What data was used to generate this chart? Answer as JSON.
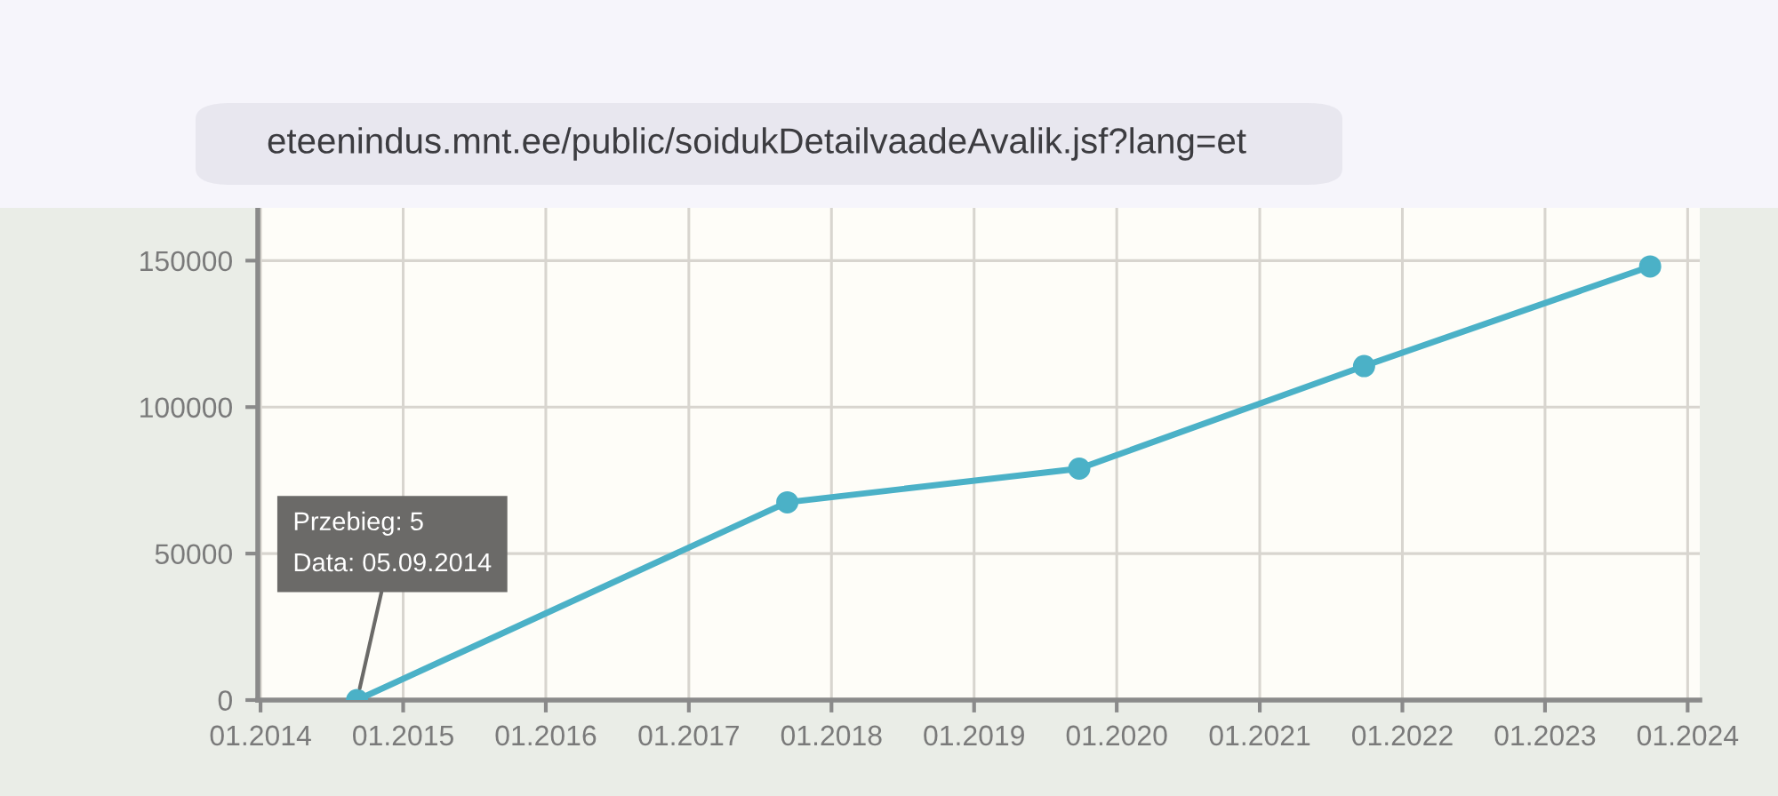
{
  "chart_data": {
    "type": "line",
    "x": [
      "2014-09-05",
      "2017-09-10",
      "2019-09-27",
      "2021-09-25",
      "2023-09-27"
    ],
    "series": [
      {
        "color": "#4bb1c7",
        "values": [
          5,
          67500,
          79000,
          114000,
          148000
        ]
      }
    ],
    "xlim": [
      "2013-12-25",
      "2024-02-01"
    ],
    "xticks": [
      {
        "value": "2014-01-01",
        "label": "01.2014"
      },
      {
        "value": "2015-01-01",
        "label": "01.2015"
      },
      {
        "value": "2016-01-01",
        "label": "01.2016"
      },
      {
        "value": "2017-01-01",
        "label": "01.2017"
      },
      {
        "value": "2018-01-01",
        "label": "01.2018"
      },
      {
        "value": "2019-01-01",
        "label": "01.2019"
      },
      {
        "value": "2020-01-01",
        "label": "01.2020"
      },
      {
        "value": "2021-01-01",
        "label": "01.2021"
      },
      {
        "value": "2022-01-01",
        "label": "01.2022"
      },
      {
        "value": "2023-01-01",
        "label": "01.2023"
      },
      {
        "value": "2024-01-01",
        "label": "01.2024"
      }
    ],
    "ylim": [
      0,
      168000
    ],
    "yticks": [
      0,
      50000,
      100000,
      150000
    ],
    "grid": true,
    "marker": "circle",
    "line_style": "solid",
    "annotations": [
      {
        "text": "Przebieg: 5\nData: 05.09.2014",
        "x": "2014-09-05",
        "y": 5
      },
      "eteenindus.mnt.ee/public/soidukDetailvaadeAvalik.jsf?lang=et"
    ]
  }
}
